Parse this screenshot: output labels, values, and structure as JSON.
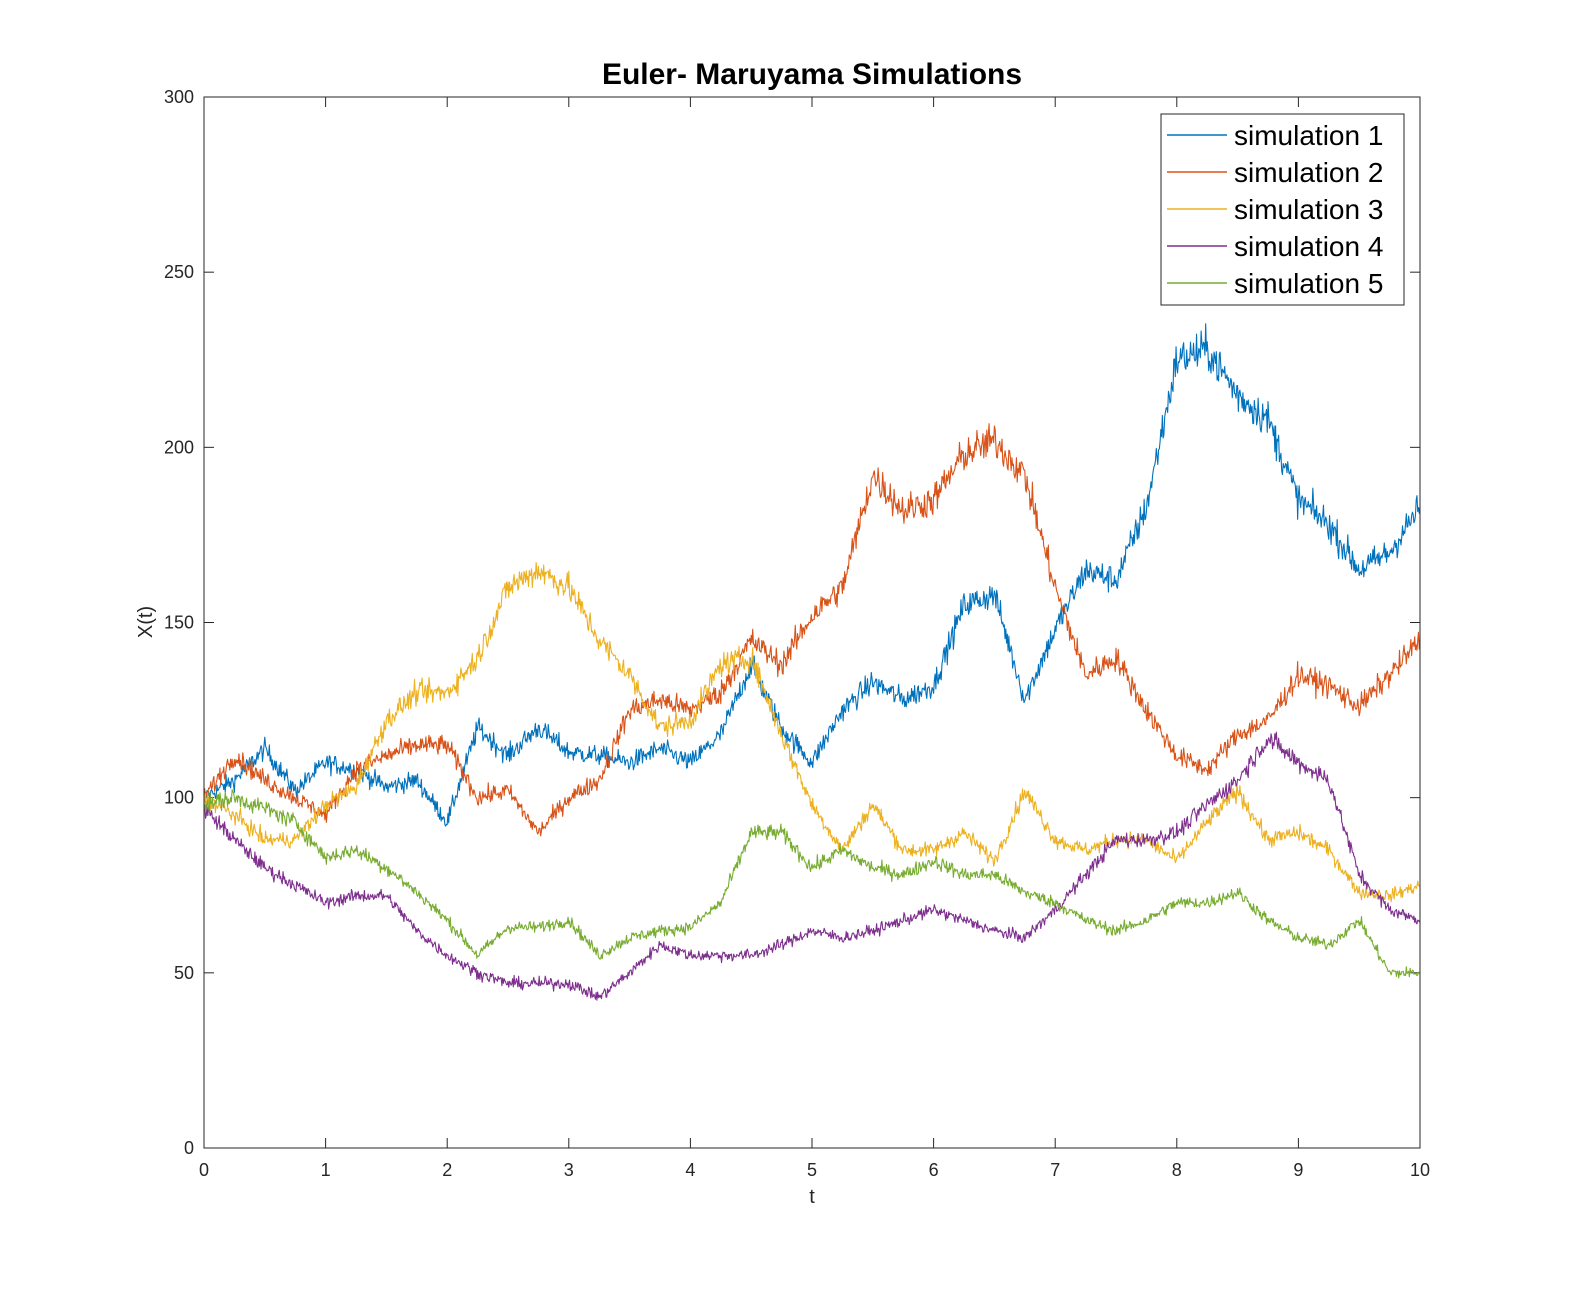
{
  "chart_data": {
    "type": "line",
    "title": "Euler- Maruyama Simulations",
    "xlabel": "t",
    "ylabel": "X(t)",
    "xlim": [
      0,
      10
    ],
    "ylim": [
      0,
      300
    ],
    "xticks": [
      0,
      1,
      2,
      3,
      4,
      5,
      6,
      7,
      8,
      9,
      10
    ],
    "yticks": [
      0,
      50,
      100,
      150,
      200,
      250,
      300
    ],
    "grid": false,
    "legend_position": "top-right",
    "x": [
      0,
      0.25,
      0.5,
      0.75,
      1,
      1.25,
      1.5,
      1.75,
      2,
      2.25,
      2.5,
      2.75,
      3,
      3.25,
      3.5,
      3.75,
      4,
      4.25,
      4.5,
      4.75,
      5,
      5.25,
      5.5,
      5.75,
      6,
      6.25,
      6.5,
      6.75,
      7,
      7.25,
      7.5,
      7.75,
      8,
      8.25,
      8.5,
      8.75,
      9,
      9.25,
      9.5,
      9.75,
      10
    ],
    "series": [
      {
        "name": "simulation 1",
        "color": "#0072BD",
        "values": [
          100,
          105,
          114,
          102,
          110,
          108,
          103,
          105,
          93,
          120,
          112,
          120,
          113,
          112,
          110,
          114,
          110,
          118,
          138,
          120,
          110,
          125,
          133,
          128,
          132,
          155,
          158,
          128,
          148,
          165,
          162,
          183,
          225,
          228,
          215,
          208,
          185,
          178,
          165,
          170,
          183
        ]
      },
      {
        "name": "simulation 2",
        "color": "#D95319",
        "values": [
          100,
          112,
          105,
          100,
          95,
          108,
          112,
          115,
          115,
          100,
          102,
          90,
          100,
          105,
          125,
          128,
          125,
          130,
          145,
          138,
          152,
          160,
          192,
          182,
          185,
          198,
          202,
          192,
          160,
          135,
          140,
          125,
          112,
          108,
          118,
          122,
          135,
          132,
          126,
          135,
          145
        ]
      },
      {
        "name": "simulation 3",
        "color": "#EDB120",
        "values": [
          100,
          95,
          88,
          88,
          98,
          103,
          122,
          130,
          130,
          140,
          160,
          165,
          160,
          145,
          135,
          120,
          122,
          138,
          140,
          118,
          98,
          85,
          98,
          85,
          85,
          90,
          82,
          102,
          88,
          85,
          88,
          88,
          82,
          93,
          102,
          88,
          90,
          85,
          73,
          72,
          75
        ]
      },
      {
        "name": "simulation 4",
        "color": "#7E2F8E",
        "values": [
          97,
          88,
          80,
          75,
          70,
          72,
          72,
          62,
          55,
          50,
          47,
          47,
          47,
          43,
          50,
          58,
          55,
          55,
          55,
          58,
          62,
          60,
          62,
          65,
          68,
          65,
          62,
          60,
          68,
          78,
          88,
          88,
          90,
          98,
          105,
          117,
          110,
          105,
          78,
          68,
          65
        ]
      },
      {
        "name": "simulation 5",
        "color": "#77AC30",
        "values": [
          98,
          100,
          97,
          93,
          83,
          85,
          80,
          73,
          65,
          55,
          63,
          63,
          65,
          55,
          60,
          62,
          63,
          70,
          90,
          90,
          80,
          85,
          80,
          78,
          82,
          78,
          78,
          73,
          70,
          65,
          62,
          65,
          70,
          70,
          73,
          65,
          60,
          58,
          65,
          50,
          50
        ]
      }
    ]
  }
}
